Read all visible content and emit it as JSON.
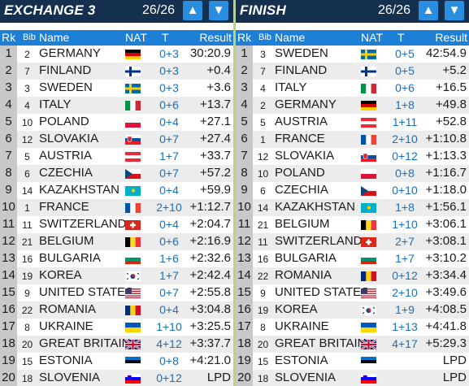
{
  "panels": [
    {
      "title": "EXCHANGE 3",
      "counter": "26/26",
      "headers": {
        "rk": "Rk",
        "bib": "Bib",
        "name": "Name",
        "nat": "NAT",
        "t": "T",
        "result": "Result"
      },
      "rows": [
        {
          "rk": "1",
          "bib": "2",
          "name": "GERMANY",
          "flag": "germany",
          "t": "0+3",
          "result": "30:20.9"
        },
        {
          "rk": "2",
          "bib": "7",
          "name": "FINLAND",
          "flag": "finland",
          "t": "0+3",
          "result": "+0.4"
        },
        {
          "rk": "3",
          "bib": "3",
          "name": "SWEDEN",
          "flag": "sweden",
          "t": "0+3",
          "result": "+3.6"
        },
        {
          "rk": "4",
          "bib": "4",
          "name": "ITALY",
          "flag": "italy",
          "t": "0+6",
          "result": "+13.7"
        },
        {
          "rk": "5",
          "bib": "10",
          "name": "POLAND",
          "flag": "poland",
          "t": "0+4",
          "result": "+27.1"
        },
        {
          "rk": "6",
          "bib": "12",
          "name": "SLOVAKIA",
          "flag": "slovakia",
          "t": "0+7",
          "result": "+27.4"
        },
        {
          "rk": "7",
          "bib": "5",
          "name": "AUSTRIA",
          "flag": "austria",
          "t": "1+7",
          "result": "+33.7"
        },
        {
          "rk": "8",
          "bib": "6",
          "name": "CZECHIA",
          "flag": "czechia",
          "t": "0+7",
          "result": "+57.2"
        },
        {
          "rk": "9",
          "bib": "14",
          "name": "KAZAKHSTAN",
          "flag": "kazakhstan",
          "t": "0+4",
          "result": "+59.9"
        },
        {
          "rk": "10",
          "bib": "1",
          "name": "FRANCE",
          "flag": "france",
          "t": "2+10",
          "result": "+1:12.7"
        },
        {
          "rk": "11",
          "bib": "11",
          "name": "SWITZERLAND",
          "flag": "switzerland",
          "t": "0+4",
          "result": "+2:04.7"
        },
        {
          "rk": "12",
          "bib": "21",
          "name": "BELGIUM",
          "flag": "belgium",
          "t": "0+6",
          "result": "+2:16.9"
        },
        {
          "rk": "13",
          "bib": "16",
          "name": "BULGARIA",
          "flag": "bulgaria",
          "t": "1+6",
          "result": "+2:32.6"
        },
        {
          "rk": "14",
          "bib": "19",
          "name": "KOREA",
          "flag": "korea",
          "t": "1+7",
          "result": "+2:42.4"
        },
        {
          "rk": "15",
          "bib": "9",
          "name": "UNITED STATES",
          "flag": "usa",
          "t": "0+7",
          "result": "+2:55.8"
        },
        {
          "rk": "16",
          "bib": "22",
          "name": "ROMANIA",
          "flag": "romania",
          "t": "0+4",
          "result": "+3:04.8"
        },
        {
          "rk": "17",
          "bib": "8",
          "name": "UKRAINE",
          "flag": "ukraine",
          "t": "1+10",
          "result": "+3:25.5"
        },
        {
          "rk": "18",
          "bib": "20",
          "name": "GREAT BRITAIN",
          "flag": "uk",
          "t": "4+12",
          "result": "+3:37.7"
        },
        {
          "rk": "19",
          "bib": "15",
          "name": "ESTONIA",
          "flag": "estonia",
          "t": "0+8",
          "result": "+4:21.0"
        },
        {
          "rk": "20",
          "bib": "18",
          "name": "SLOVENIA",
          "flag": "slovenia",
          "t": "0+12",
          "result": "LPD"
        }
      ]
    },
    {
      "title": "FINISH",
      "counter": "26/26",
      "headers": {
        "rk": "Rk",
        "bib": "Bib",
        "name": "Name",
        "nat": "NAT",
        "t": "T",
        "result": "Result"
      },
      "rows": [
        {
          "rk": "1",
          "bib": "3",
          "name": "SWEDEN",
          "flag": "sweden",
          "t": "0+5",
          "result": "42:54.9"
        },
        {
          "rk": "2",
          "bib": "7",
          "name": "FINLAND",
          "flag": "finland",
          "t": "0+5",
          "result": "+5.2"
        },
        {
          "rk": "3",
          "bib": "4",
          "name": "ITALY",
          "flag": "italy",
          "t": "0+6",
          "result": "+16.5"
        },
        {
          "rk": "4",
          "bib": "2",
          "name": "GERMANY",
          "flag": "germany",
          "t": "1+8",
          "result": "+49.8"
        },
        {
          "rk": "5",
          "bib": "5",
          "name": "AUSTRIA",
          "flag": "austria",
          "t": "1+11",
          "result": "+52.8"
        },
        {
          "rk": "6",
          "bib": "1",
          "name": "FRANCE",
          "flag": "france",
          "t": "2+10",
          "result": "+1:10.8"
        },
        {
          "rk": "7",
          "bib": "12",
          "name": "SLOVAKIA",
          "flag": "slovakia",
          "t": "0+12",
          "result": "+1:13.3"
        },
        {
          "rk": "8",
          "bib": "10",
          "name": "POLAND",
          "flag": "poland",
          "t": "0+8",
          "result": "+1:16.7"
        },
        {
          "rk": "9",
          "bib": "6",
          "name": "CZECHIA",
          "flag": "czechia",
          "t": "0+10",
          "result": "+1:18.0"
        },
        {
          "rk": "10",
          "bib": "14",
          "name": "KAZAKHSTAN",
          "flag": "kazakhstan",
          "t": "1+8",
          "result": "+1:56.1"
        },
        {
          "rk": "11",
          "bib": "21",
          "name": "BELGIUM",
          "flag": "belgium",
          "t": "1+10",
          "result": "+3:06.1"
        },
        {
          "rk": "12",
          "bib": "11",
          "name": "SWITZERLAND",
          "flag": "switzerland",
          "t": "2+7",
          "result": "+3:08.1"
        },
        {
          "rk": "13",
          "bib": "16",
          "name": "BULGARIA",
          "flag": "bulgaria",
          "t": "1+7",
          "result": "+3:10.2"
        },
        {
          "rk": "14",
          "bib": "22",
          "name": "ROMANIA",
          "flag": "romania",
          "t": "0+12",
          "result": "+3:34.4"
        },
        {
          "rk": "15",
          "bib": "9",
          "name": "UNITED STATES",
          "flag": "usa",
          "t": "2+10",
          "result": "+3:49.6"
        },
        {
          "rk": "16",
          "bib": "19",
          "name": "KOREA",
          "flag": "korea",
          "t": "1+9",
          "result": "+4:08.5"
        },
        {
          "rk": "17",
          "bib": "8",
          "name": "UKRAINE",
          "flag": "ukraine",
          "t": "1+13",
          "result": "+4:41.8"
        },
        {
          "rk": "18",
          "bib": "20",
          "name": "GREAT BRITAIN",
          "flag": "uk",
          "t": "4+17",
          "result": "+5:29.3"
        },
        {
          "rk": "19",
          "bib": "15",
          "name": "ESTONIA",
          "flag": "estonia",
          "t": "",
          "result": "LPD"
        },
        {
          "rk": "20",
          "bib": "18",
          "name": "SLOVENIA",
          "flag": "slovenia",
          "t": "",
          "result": "LPD"
        }
      ]
    }
  ],
  "icons": {
    "up": "arrow-up-icon",
    "down": "arrow-down-icon"
  },
  "colors": {
    "header_bg": "#15304f",
    "column_header_bg": "#1d7fd6",
    "button_bg": "#2a8ee0",
    "divider": "#b5d96a",
    "shooting_text": "#1b6fb8"
  }
}
